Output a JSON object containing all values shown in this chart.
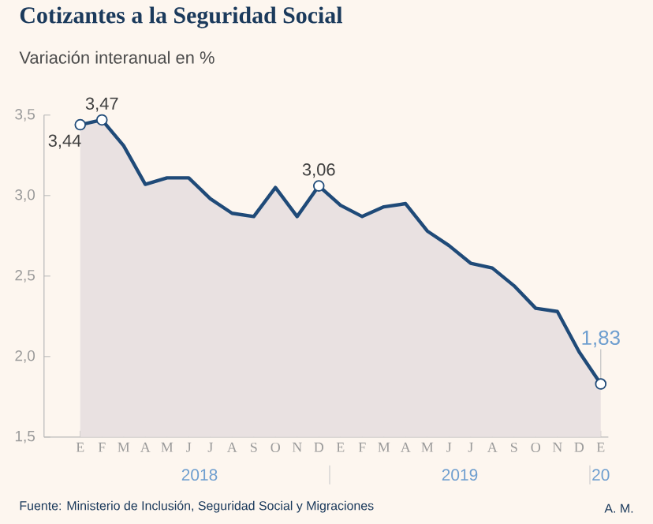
{
  "chart_data": {
    "type": "area",
    "title": "Cotizantes a la Seguridad Social",
    "subtitle": "Variación interanual en %",
    "categories": [
      "E",
      "F",
      "M",
      "A",
      "M",
      "J",
      "J",
      "A",
      "S",
      "O",
      "N",
      "D",
      "E",
      "F",
      "M",
      "A",
      "M",
      "J",
      "J",
      "A",
      "S",
      "O",
      "N",
      "D",
      "E"
    ],
    "values": [
      3.44,
      3.47,
      3.31,
      3.07,
      3.11,
      3.11,
      2.98,
      2.89,
      2.87,
      3.05,
      2.87,
      3.06,
      2.94,
      2.87,
      2.93,
      2.95,
      2.78,
      2.69,
      2.58,
      2.55,
      2.44,
      2.3,
      2.28,
      2.03,
      1.83
    ],
    "value_labels": [
      "3,44",
      "3,47",
      null,
      null,
      null,
      null,
      null,
      null,
      null,
      null,
      null,
      "3,06",
      null,
      null,
      null,
      null,
      null,
      null,
      null,
      null,
      null,
      null,
      null,
      null,
      "1,83"
    ],
    "color": "#1f4a78",
    "ylim": [
      1.5,
      3.5
    ],
    "yticks": [
      {
        "value": 1.5,
        "label": "1,5"
      },
      {
        "value": 2.0,
        "label": "2,0"
      },
      {
        "value": 2.5,
        "label": "2,5"
      },
      {
        "value": 3.0,
        "label": "3,0"
      },
      {
        "value": 3.5,
        "label": "3,5"
      }
    ],
    "annotations": [
      "2018",
      "2019",
      "20",
      "Fuente: Ministerio de Inclusión, Seguridad Social y Migraciones",
      "A. M."
    ],
    "grid": false
  }
}
